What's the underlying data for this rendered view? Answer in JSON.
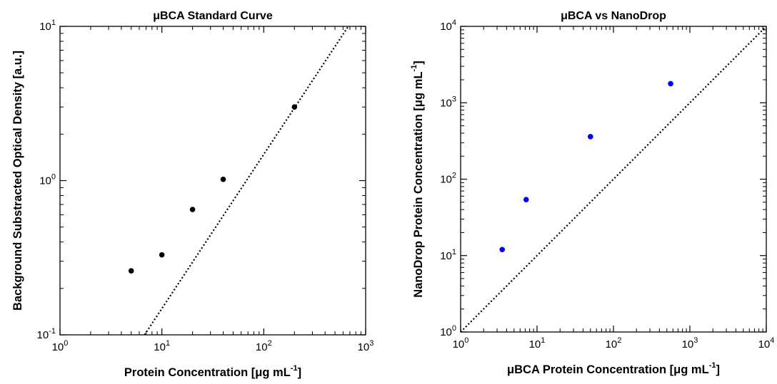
{
  "chart_data": [
    {
      "type": "scatter",
      "title": "μBCA Standard Curve",
      "xlabel": "Protein Concentration [μg mL",
      "xlabel_sup": "-1",
      "xlabel_end": "]",
      "ylabel": "Background Substracted Optical Density [a.u.]",
      "xscale": "log",
      "yscale": "log",
      "xlim": [
        1,
        1000
      ],
      "ylim": [
        0.1,
        10
      ],
      "xticks": [
        {
          "base": "10",
          "exp": "0"
        },
        {
          "base": "10",
          "exp": "1"
        },
        {
          "base": "10",
          "exp": "2"
        },
        {
          "base": "10",
          "exp": "3"
        }
      ],
      "yticks": [
        {
          "base": "10",
          "exp": "-1"
        },
        {
          "base": "10",
          "exp": "0"
        },
        {
          "base": "10",
          "exp": "1"
        }
      ],
      "grid": false,
      "series": [
        {
          "marker_color": "#000000",
          "x": [
            5,
            10,
            20,
            40,
            200
          ],
          "y": [
            0.26,
            0.33,
            0.65,
            1.02,
            3.0
          ]
        }
      ],
      "fit_line": {
        "style": "dotted",
        "color": "#000000",
        "slope": 1,
        "intercept": 0.0148
      }
    },
    {
      "type": "scatter",
      "title": "μBCA vs NanoDrop",
      "xlabel": "μBCA Protein Concentration [μg mL",
      "xlabel_sup": "-1",
      "xlabel_end": "]",
      "ylabel": "NanoDrop Protein Concentration [μg mL",
      "ylabel_sup": "-1",
      "ylabel_end": "]",
      "xscale": "log",
      "yscale": "log",
      "xlim": [
        1,
        10000
      ],
      "ylim": [
        1,
        10000
      ],
      "xticks": [
        {
          "base": "10",
          "exp": "0"
        },
        {
          "base": "10",
          "exp": "1"
        },
        {
          "base": "10",
          "exp": "2"
        },
        {
          "base": "10",
          "exp": "3"
        },
        {
          "base": "10",
          "exp": "4"
        }
      ],
      "yticks": [
        {
          "base": "10",
          "exp": "0"
        },
        {
          "base": "10",
          "exp": "1"
        },
        {
          "base": "10",
          "exp": "2"
        },
        {
          "base": "10",
          "exp": "3"
        },
        {
          "base": "10",
          "exp": "4"
        }
      ],
      "grid": false,
      "series": [
        {
          "marker_color": "#0000ff",
          "x": [
            3.5,
            7.2,
            50,
            560
          ],
          "y": [
            12,
            54,
            360,
            1780
          ]
        }
      ],
      "fit_line": {
        "style": "dotted",
        "color": "#000000",
        "slope": 1,
        "intercept": 1
      }
    }
  ]
}
